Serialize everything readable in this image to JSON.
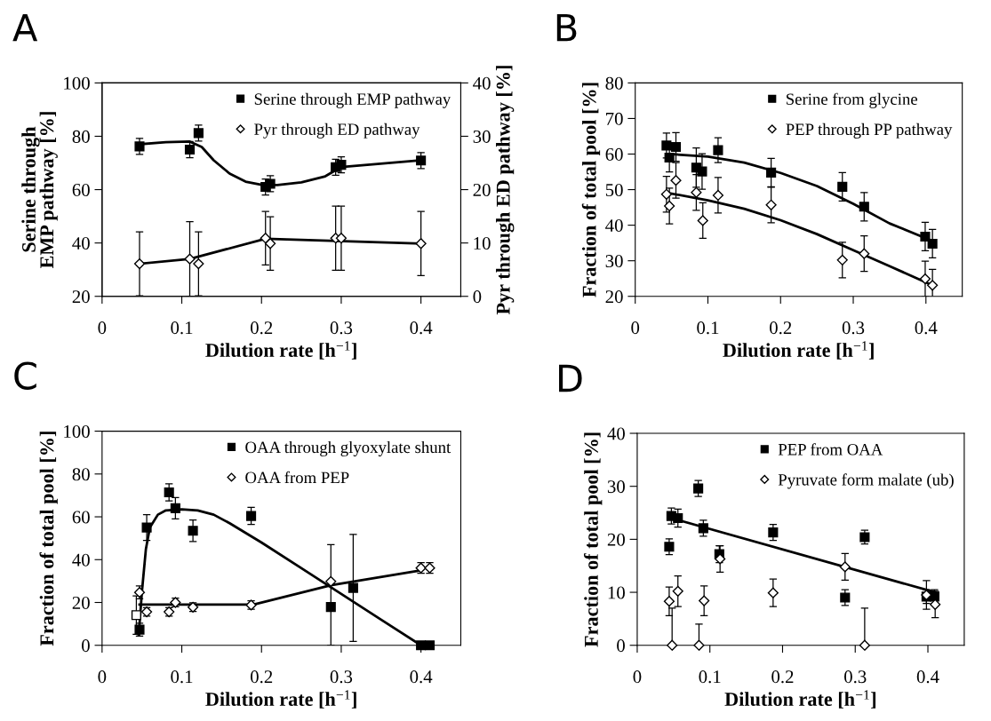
{
  "chart_data": [
    {
      "type": "scatter",
      "title": "A",
      "xlabel": "Dilution rate [h$^{−1}$]",
      "ylabel": "Serine through\nEMP pathway [%]",
      "y2label": "Pyr through ED pathway [%]",
      "xlim": [
        0,
        0.45
      ],
      "xticks": [
        0,
        0.1,
        0.2,
        0.3,
        0.4
      ],
      "ylim": [
        20,
        100
      ],
      "yticks": [
        20,
        40,
        60,
        80,
        100
      ],
      "y2lim": [
        0,
        40
      ],
      "y2ticks": [
        0,
        10,
        20,
        30,
        40
      ],
      "legend": "top right",
      "grid": false,
      "series": [
        {
          "name": "Serine through EMP pathway",
          "type": "scatter",
          "marker": "square",
          "color": "#000000",
          "x": [
            0.047,
            0.11,
            0.121,
            0.205,
            0.211,
            0.293,
            0.3,
            0.4
          ],
          "values": [
            76.2,
            75,
            81.2,
            61,
            62.2,
            68.4,
            69.3,
            70.9
          ],
          "errors": [
            3,
            3,
            3,
            3,
            3,
            3,
            3,
            3
          ]
        },
        {
          "name": "Pyr through ED pathway",
          "type": "scatter",
          "axis": "y2",
          "marker": "diamond",
          "color": "#ffffff",
          "x": [
            0.047,
            0.11,
            0.121,
            0.205,
            0.211,
            0.293,
            0.3,
            0.4
          ],
          "values": [
            6.1,
            7,
            6.1,
            10.9,
            9.9,
            10.9,
            10.9,
            9.9
          ],
          "errors": [
            6,
            7,
            6,
            5,
            5,
            6,
            6,
            6
          ]
        },
        {
          "type": "line",
          "marker": "none",
          "color": "#000000",
          "x": [
            0.047,
            0.08,
            0.11,
            0.125,
            0.14,
            0.16,
            0.18,
            0.2,
            0.22,
            0.25,
            0.28,
            0.3,
            0.4
          ],
          "values": [
            77,
            77.8,
            78,
            76,
            71,
            66,
            63,
            61.8,
            61.7,
            62.7,
            65,
            68.5,
            71
          ]
        },
        {
          "type": "line",
          "axis": "y2",
          "marker": "none",
          "color": "#000000",
          "x": [
            0.047,
            0.11,
            0.205,
            0.4
          ],
          "values": [
            6.1,
            7,
            10.8,
            9.9
          ]
        }
      ]
    },
    {
      "type": "scatter",
      "title": "B",
      "xlabel": "Dilution rate [h$^{−1}$]",
      "ylabel": "Fraction of total pool [%]",
      "xlim": [
        0,
        0.45
      ],
      "xticks": [
        0,
        0.1,
        0.2,
        0.3,
        0.4
      ],
      "ylim": [
        20,
        80
      ],
      "yticks": [
        20,
        30,
        40,
        50,
        60,
        70,
        80
      ],
      "legend": "top right",
      "grid": false,
      "series": [
        {
          "name": "Serine from glycine",
          "type": "scatter",
          "marker": "square",
          "color": "#000000",
          "x": [
            0.043,
            0.047,
            0.056,
            0.084,
            0.092,
            0.114,
            0.187,
            0.285,
            0.315,
            0.399,
            0.409
          ],
          "values": [
            62.4,
            59,
            62,
            56.2,
            55.1,
            61.1,
            54.8,
            50.8,
            45.2,
            36.8,
            34.8
          ],
          "errors": [
            3.5,
            4,
            4,
            5.5,
            5,
            3.5,
            4,
            4,
            4,
            4,
            4
          ]
        },
        {
          "name": "PEP through PP pathway",
          "type": "scatter",
          "marker": "diamond",
          "color": "#ffffff",
          "x": [
            0.043,
            0.047,
            0.056,
            0.084,
            0.093,
            0.114,
            0.187,
            0.285,
            0.315,
            0.399,
            0.409
          ],
          "values": [
            48.7,
            45.4,
            52.6,
            49.2,
            41.3,
            48.4,
            45.7,
            30.2,
            32,
            24.9,
            23.1
          ],
          "errors": [
            5,
            5,
            5,
            5,
            5,
            5,
            5,
            5,
            5,
            5,
            4.5
          ]
        },
        {
          "type": "line",
          "marker": "none",
          "color": "#000000",
          "x": [
            0.047,
            0.1,
            0.15,
            0.2,
            0.25,
            0.3,
            0.35,
            0.41
          ],
          "values": [
            60,
            59.3,
            57.6,
            54.7,
            51,
            46,
            40.5,
            35.5
          ]
        },
        {
          "type": "line",
          "marker": "none",
          "color": "#000000",
          "x": [
            0.047,
            0.1,
            0.15,
            0.2,
            0.25,
            0.3,
            0.35,
            0.41
          ],
          "values": [
            49,
            47,
            44.6,
            41.4,
            37.5,
            33,
            28.5,
            23
          ]
        }
      ]
    },
    {
      "type": "scatter",
      "title": "C",
      "xlabel": "Dilution rate [h$^{−1}$]",
      "ylabel": "Fraction of total pool [%]",
      "xlim": [
        0,
        0.45
      ],
      "xticks": [
        0,
        0.1,
        0.2,
        0.3,
        0.4
      ],
      "ylim": [
        0,
        100
      ],
      "yticks": [
        0,
        20,
        40,
        60,
        80,
        100
      ],
      "legend": "top right",
      "grid": false,
      "series": [
        {
          "name": "OAA through glyoxylate shunt",
          "type": "scatter",
          "marker": "square",
          "color": "#000000",
          "x": [
            0.047,
            0.056,
            0.084,
            0.092,
            0.114,
            0.187,
            0.287,
            0.315,
            0.4,
            0.411
          ],
          "values": [
            7.3,
            55,
            71.4,
            64,
            53.5,
            60.4,
            17.9,
            26.8,
            0,
            0
          ],
          "errors": [
            3,
            6,
            4,
            5,
            5,
            4,
            [
              0,
              47
            ],
            25,
            null,
            null
          ]
        },
        {
          "name": "OAA from PEP",
          "type": "scatter",
          "marker": "diamond",
          "color": "#ffffff",
          "x": [
            0.047,
            0.056,
            0.084,
            0.092,
            0.114,
            0.187,
            0.287,
            0.4,
            0.411
          ],
          "values": [
            24.7,
            15.6,
            15.6,
            20,
            17.8,
            18.8,
            29.8,
            36.1,
            36.1
          ],
          "errors": [
            3,
            2,
            2,
            2,
            2,
            2,
            null,
            2.5,
            2.5
          ]
        },
        {
          "type": "scatter",
          "marker": "square",
          "color": "#ffffff",
          "x": [
            0.043
          ],
          "values": [
            14.1
          ],
          "errors": [
            9
          ]
        },
        {
          "type": "line",
          "marker": "none",
          "color": "#000000",
          "x": [
            0.046,
            0.05,
            0.055,
            0.06,
            0.07,
            0.08,
            0.1,
            0.12,
            0.14,
            0.16,
            0.2,
            0.25,
            0.3,
            0.35,
            0.4
          ],
          "values": [
            5,
            25,
            45,
            55,
            61,
            63,
            63.5,
            63,
            61,
            57,
            48,
            36,
            24,
            12,
            0
          ]
        },
        {
          "type": "line",
          "marker": "none",
          "color": "#000000",
          "x": [
            0.047,
            0.19,
            0.287,
            0.4
          ],
          "values": [
            19,
            19,
            28,
            35
          ]
        }
      ]
    },
    {
      "type": "scatter",
      "title": "D",
      "xlabel": "Dilution rate [h$^{−1}$]",
      "ylabel": "Fraction of total pool [%]",
      "xlim": [
        0,
        0.45
      ],
      "xticks": [
        0,
        0.1,
        0.2,
        0.3,
        0.4
      ],
      "ylim": [
        0,
        40
      ],
      "yticks": [
        0,
        10,
        20,
        30,
        40
      ],
      "legend": "top right",
      "grid": false,
      "series": [
        {
          "name": "PEP from OAA",
          "type": "scatter",
          "marker": "square",
          "color": "#000000",
          "x": [
            0.044,
            0.047,
            0.056,
            0.084,
            0.091,
            0.113,
            0.187,
            0.286,
            0.313,
            0.398,
            0.409
          ],
          "values": [
            18.6,
            24.4,
            24,
            29.6,
            22.1,
            17.2,
            21.3,
            9,
            20.4,
            9.2,
            9.2
          ],
          "errors": [
            1.5,
            1.5,
            1.7,
            1.5,
            1.5,
            1.6,
            1.5,
            1.5,
            1.3,
            1.3,
            1.3
          ]
        },
        {
          "name": "Pyruvate form malate (ub)",
          "type": "scatter",
          "marker": "diamond",
          "color": "#ffffff",
          "x": [
            0.044,
            0.048,
            0.056,
            0.085,
            0.092,
            0.114,
            0.187,
            0.286,
            0.313,
            0.398,
            0.41
          ],
          "values": [
            8.3,
            0,
            10.2,
            0,
            8.4,
            16.3,
            9.9,
            14.8,
            0,
            9.5,
            7.7
          ],
          "errors": [
            2.7,
            [
              0,
              7
            ],
            2.9,
            [
              0,
              4
            ],
            2.8,
            2.5,
            2.6,
            2.5,
            [
              0,
              7
            ],
            2.7,
            2.5
          ]
        },
        {
          "type": "line",
          "marker": "none",
          "color": "#000000",
          "x": [
            0.047,
            0.41
          ],
          "values": [
            24,
            10
          ]
        }
      ]
    }
  ]
}
